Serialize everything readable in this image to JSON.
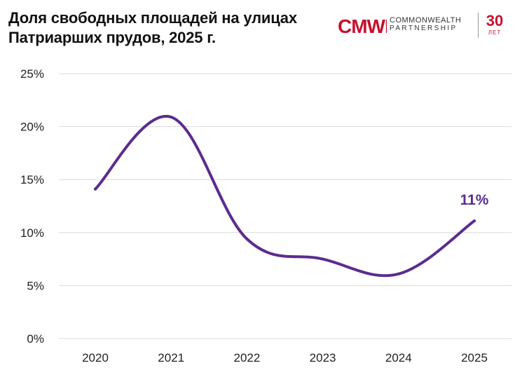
{
  "header": {
    "title": "Доля свободных площадей на улицах\nПатриарших прудов, 2025 г."
  },
  "logo": {
    "brand_line1": "COMMONWEALTH",
    "brand_line2": "PARTNERSHIP",
    "anniversary_number": "30",
    "anniversary_unit": "ЛЕТ",
    "logo_mark_text": "CMWP",
    "brand_color": "#c8102e"
  },
  "chart_data": {
    "type": "line",
    "x": [
      "2020",
      "2021",
      "2022",
      "2023",
      "2024",
      "2025"
    ],
    "series": [
      {
        "values": [
          14.1,
          20.9,
          9.4,
          7.5,
          6.1,
          11.1
        ],
        "color": "#5b2c8f"
      }
    ],
    "yticks": [
      "0%",
      "5%",
      "10%",
      "15%",
      "20%",
      "25%"
    ],
    "ylim": [
      0,
      25
    ],
    "grid": true,
    "data_labels": [
      {
        "x": "2025",
        "text": "11%"
      }
    ]
  }
}
